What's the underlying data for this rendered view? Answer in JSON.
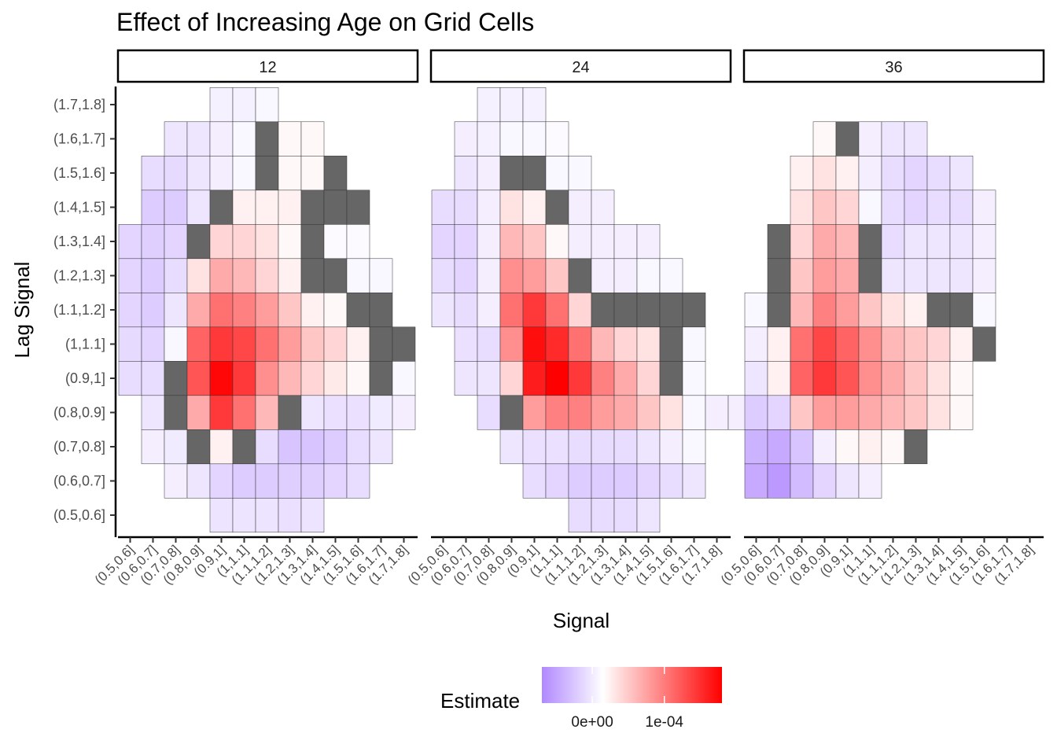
{
  "chart_data": {
    "type": "heatmap",
    "title": "Effect of Increasing Age on Grid Cells",
    "xlabel": "Signal",
    "ylabel": "Lag Signal",
    "categories_x": [
      "(0.5,0.6]",
      "(0.6,0.7]",
      "(0.7,0.8]",
      "(0.8,0.9]",
      "(0.9,1]",
      "(1,1.1]",
      "(1.1,1.2]",
      "(1.2,1.3]",
      "(1.3,1.4]",
      "(1.4,1.5]",
      "(1.5,1.6]",
      "(1.6,1.7]",
      "(1.7,1.8]"
    ],
    "categories_y": [
      "(0.5,0.6]",
      "(0.6,0.7]",
      "(0.7,0.8]",
      "(0.8,0.9]",
      "(0.9,1]",
      "(1,1.1]",
      "(1.1,1.2]",
      "(1.2,1.3]",
      "(1.3,1.4]",
      "(1.4,1.5]",
      "(1.5,1.6]",
      "(1.6,1.7]",
      "(1.7,1.8]"
    ],
    "x_positions": 13,
    "legend": {
      "title": "Estimate",
      "placement": "bottom",
      "tick_labels": [
        "0e+00",
        "1e-04"
      ],
      "tick_values": [
        0,
        0.0001
      ],
      "range": [
        -7e-05,
        0.00018
      ]
    },
    "colors": {
      "low": "#b088ff",
      "mid": "#ffffff",
      "high": "#ff0000",
      "na": "#666666",
      "cell_border": "#333333"
    },
    "note_values": "Estimates in units of 1e-05; null = missing (grey) cell",
    "panels": [
      {
        "label": "12",
        "rows": [
          {
            "y": "(0.5,0.6]",
            "x_start": 4,
            "values": [
              -1.6,
              -1.6,
              -1.6,
              -1.8,
              -1.6
            ]
          },
          {
            "y": "(0.6,0.7]",
            "x_start": 2,
            "values": [
              -1,
              -1.5,
              -2.5,
              -3,
              -3,
              -2.8,
              -2.8,
              -2.5,
              -2
            ]
          },
          {
            "y": "(0.7,0.8]",
            "x_start": 1,
            "values": [
              -1,
              -1.2,
              null,
              1,
              null,
              -2,
              -3.5,
              -3.5,
              -3,
              -2,
              -1.5
            ]
          },
          {
            "y": "(0.8,0.9]",
            "x_start": 1,
            "values": [
              -1.5,
              null,
              6,
              14,
              10,
              5,
              null,
              -1.5,
              -1.8,
              -1.8,
              -1.2,
              -1
            ]
          },
          {
            "y": "(0.9,1]",
            "x_start": 0,
            "values": [
              -2,
              -2,
              null,
              12,
              17.5,
              14,
              8,
              5,
              3,
              1.5,
              0.5,
              null,
              -0.5
            ]
          },
          {
            "y": "(1,1.1]",
            "x_start": 0,
            "values": [
              -2.2,
              -2.6,
              -0.5,
              11,
              14,
              13,
              10,
              7,
              4,
              3,
              1,
              null,
              null
            ]
          },
          {
            "y": "(1.1,1.2]",
            "x_start": 0,
            "values": [
              -2.5,
              -3,
              -1.5,
              6,
              10,
              9,
              7,
              4,
              1,
              0.5,
              null,
              null
            ]
          },
          {
            "y": "(1.2,1.3]",
            "x_start": 0,
            "values": [
              -2.5,
              -3,
              -2,
              2,
              6,
              5,
              3,
              1,
              null,
              null,
              -0.5,
              -0.5
            ]
          },
          {
            "y": "(1.3,1.4]",
            "x_start": 0,
            "values": [
              -2.5,
              -2.8,
              -2.5,
              null,
              3,
              3,
              2,
              0.5,
              null,
              -0.3,
              -0.3
            ]
          },
          {
            "y": "(1.4,1.5]",
            "x_start": 1,
            "values": [
              -3,
              -3,
              -1.5,
              null,
              1,
              1,
              1,
              null,
              null,
              null
            ]
          },
          {
            "y": "(1.5,1.6]",
            "x_start": 1,
            "values": [
              -2,
              -2.2,
              -1.5,
              -1,
              -0.5,
              null,
              0.5,
              0.5,
              null
            ]
          },
          {
            "y": "(1.6,1.7]",
            "x_start": 2,
            "values": [
              -1.5,
              -1.5,
              -1,
              -0.5,
              null,
              0.5,
              0.5
            ]
          },
          {
            "y": "(1.7,1.8]",
            "x_start": 4,
            "values": [
              -0.8,
              -0.8,
              -0.5
            ]
          }
        ]
      },
      {
        "label": "24",
        "rows": [
          {
            "y": "(0.5,0.6]",
            "x_start": 6,
            "values": [
              -2,
              -2,
              -2,
              -1.5
            ]
          },
          {
            "y": "(0.6,0.7]",
            "x_start": 4,
            "values": [
              -2,
              -2.5,
              -3,
              -3,
              -3,
              -2.5,
              -2,
              -1.5
            ]
          },
          {
            "y": "(0.7,0.8]",
            "x_start": 3,
            "values": [
              -1.5,
              -1.8,
              -1.8,
              -2,
              -2,
              -2,
              -1.5,
              -1,
              -0.5
            ]
          },
          {
            "y": "(0.8,0.9]",
            "x_start": 2,
            "values": [
              -2,
              null,
              7,
              9,
              9,
              7,
              6,
              4,
              2,
              -0.5,
              -1,
              -1
            ]
          },
          {
            "y": "(0.9,1]",
            "x_start": 1,
            "values": [
              -1.5,
              -1.5,
              3,
              16,
              18,
              14,
              9,
              6,
              3,
              null,
              -0.5
            ]
          },
          {
            "y": "(1,1.1]",
            "x_start": 1,
            "values": [
              -1.8,
              -2,
              8,
              17,
              15,
              10,
              5,
              3,
              2,
              null,
              -0.5
            ]
          },
          {
            "y": "(1.1,1.2]",
            "x_start": 0,
            "values": [
              -1.5,
              -2,
              -1,
              10,
              14,
              10,
              3,
              null,
              null,
              null,
              null,
              null
            ]
          },
          {
            "y": "(1.2,1.3]",
            "x_start": 0,
            "values": [
              -2,
              -2.5,
              -1,
              8,
              7,
              4,
              null,
              -1,
              -1,
              -0.5,
              -0.5
            ]
          },
          {
            "y": "(1.3,1.4]",
            "x_start": 0,
            "values": [
              -2.5,
              -2.5,
              -1,
              5,
              4,
              0.5,
              -1,
              -1,
              -1,
              -1
            ]
          },
          {
            "y": "(1.4,1.5]",
            "x_start": 0,
            "values": [
              -2,
              -2,
              -1,
              2,
              1,
              null,
              -1,
              -1
            ]
          },
          {
            "y": "(1.5,1.6]",
            "x_start": 1,
            "values": [
              -1.5,
              -1,
              null,
              null,
              -0.5,
              -0.5
            ]
          },
          {
            "y": "(1.6,1.7]",
            "x_start": 1,
            "values": [
              -1,
              -0.8,
              -0.5,
              -0.5,
              -0.3
            ]
          },
          {
            "y": "(1.7,1.8]",
            "x_start": 2,
            "values": [
              -0.8,
              -0.8,
              -0.8
            ]
          }
        ]
      },
      {
        "label": "36",
        "rows": [
          {
            "y": "(0.6,0.7]",
            "x_start": 0,
            "values": [
              -5,
              -6,
              -4,
              -2.5,
              -1.5,
              -1
            ]
          },
          {
            "y": "(0.7,0.8]",
            "x_start": 0,
            "values": [
              -4.5,
              -5,
              -3.5,
              -1,
              0.5,
              1,
              0.5,
              null
            ]
          },
          {
            "y": "(0.8,0.9]",
            "x_start": 0,
            "values": [
              -3,
              -2.5,
              4,
              7,
              7,
              6,
              5,
              4,
              2,
              0.5
            ]
          },
          {
            "y": "(0.9,1]",
            "x_start": 0,
            "values": [
              -1.5,
              1,
              11,
              14,
              12,
              8,
              6,
              4,
              2,
              0.5
            ]
          },
          {
            "y": "(1,1.1]",
            "x_start": 0,
            "values": [
              -1,
              1,
              10,
              13,
              11,
              8,
              5,
              4,
              3,
              1,
              null
            ]
          },
          {
            "y": "(1.1,1.2]",
            "x_start": 0,
            "values": [
              -0.5,
              null,
              5,
              9,
              7,
              4,
              2,
              1,
              null,
              null,
              -0.5
            ]
          },
          {
            "y": "(1.2,1.3]",
            "x_start": 1,
            "values": [
              null,
              4,
              7,
              6,
              null,
              -1.5,
              -1.5,
              -1.5,
              -1.5,
              -1
            ]
          },
          {
            "y": "(1.3,1.4]",
            "x_start": 1,
            "values": [
              null,
              3,
              6,
              5,
              null,
              -2,
              -1.5,
              -1.5,
              -1.5,
              -1
            ]
          },
          {
            "y": "(1.4,1.5]",
            "x_start": 2,
            "values": [
              2,
              4,
              3,
              -0.5,
              -2,
              -2.5,
              -2,
              -2,
              -1
            ]
          },
          {
            "y": "(1.5,1.6]",
            "x_start": 2,
            "values": [
              1,
              2,
              1,
              -1,
              -2,
              -2.5,
              -2,
              -1.5
            ]
          },
          {
            "y": "(1.6,1.7]",
            "x_start": 3,
            "values": [
              0.5,
              null,
              -1,
              -1.5,
              -1.5
            ]
          }
        ]
      }
    ]
  }
}
